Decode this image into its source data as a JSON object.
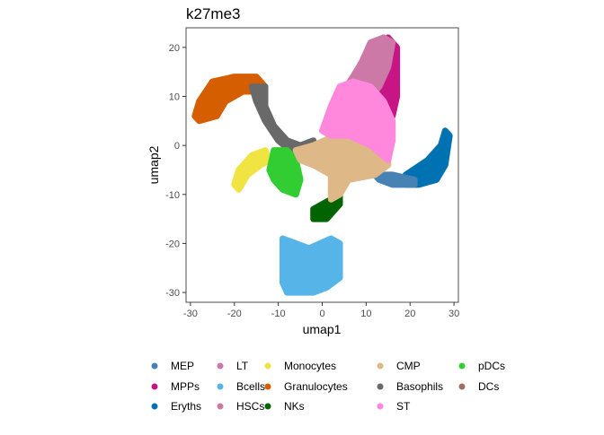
{
  "chart_data": {
    "type": "scatter",
    "title": "k27me3",
    "xlabel": "umap1",
    "ylabel": "umap2",
    "xlim": [
      -31,
      31
    ],
    "ylim": [
      -32,
      24
    ],
    "x_ticks": [
      -30,
      -20,
      -10,
      0,
      10,
      20,
      30
    ],
    "y_ticks": [
      -30,
      -20,
      -10,
      0,
      10,
      20
    ],
    "grid": false,
    "legend_position": "bottom",
    "legend": [
      {
        "name": "MEP",
        "color": "#4682B4"
      },
      {
        "name": "MPPs",
        "color": "#C71585"
      },
      {
        "name": "Eryths",
        "color": "#0072B2"
      },
      {
        "name": "LT",
        "color": "#CC79A7"
      },
      {
        "name": "Bcells",
        "color": "#56B4E9"
      },
      {
        "name": "HSCs",
        "color": "#CC79A7"
      },
      {
        "name": "Monocytes",
        "color": "#F0E442"
      },
      {
        "name": "Granulocytes",
        "color": "#D55E00"
      },
      {
        "name": "NKs",
        "color": "#006400"
      },
      {
        "name": "CMP",
        "color": "#DEB887"
      },
      {
        "name": "Basophils",
        "color": "#696969"
      },
      {
        "name": "ST",
        "color": "#FF88DD"
      },
      {
        "name": "pDCs",
        "color": "#32CD32"
      },
      {
        "name": "DCs",
        "color": "#A0705F"
      }
    ],
    "clusters": [
      {
        "name": "Granulocytes",
        "color": "#D55E00",
        "path": [
          [
            -28,
            5
          ],
          [
            -29,
            6
          ],
          [
            -28,
            9
          ],
          [
            -25,
            13
          ],
          [
            -20,
            14
          ],
          [
            -15,
            14
          ],
          [
            -13,
            12
          ],
          [
            -14,
            11
          ],
          [
            -18,
            11
          ],
          [
            -22,
            9
          ],
          [
            -24,
            6
          ]
        ]
      },
      {
        "name": "Basophils",
        "color": "#696969",
        "path": [
          [
            -16,
            12
          ],
          [
            -13,
            12
          ],
          [
            -13,
            8
          ],
          [
            -11,
            4
          ],
          [
            -8,
            1
          ],
          [
            -5,
            0
          ],
          [
            -2,
            1
          ],
          [
            -2,
            -1
          ],
          [
            -6,
            -2
          ],
          [
            -10,
            1
          ],
          [
            -13,
            5
          ],
          [
            -15,
            9
          ]
        ]
      },
      {
        "name": "Monocytes",
        "color": "#F0E442",
        "path": [
          [
            -20,
            -8
          ],
          [
            -19,
            -5
          ],
          [
            -16,
            -2
          ],
          [
            -13,
            -1
          ],
          [
            -12,
            -3
          ],
          [
            -14,
            -4
          ],
          [
            -17,
            -6
          ],
          [
            -19,
            -9
          ]
        ]
      },
      {
        "name": "pDCs",
        "color": "#32CD32",
        "path": [
          [
            -12,
            -5
          ],
          [
            -11,
            -1
          ],
          [
            -8,
            -1
          ],
          [
            -6,
            -3
          ],
          [
            -5,
            -7
          ],
          [
            -6,
            -10
          ],
          [
            -9,
            -9
          ],
          [
            -11,
            -7
          ]
        ]
      },
      {
        "name": "NKs",
        "color": "#006400",
        "path": [
          [
            -2,
            -13
          ],
          [
            -2,
            -15
          ],
          [
            1,
            -15
          ],
          [
            4,
            -12
          ],
          [
            4,
            -9
          ],
          [
            3,
            -8
          ],
          [
            2,
            -11
          ],
          [
            0,
            -12
          ]
        ]
      },
      {
        "name": "Bcells",
        "color": "#56B4E9",
        "path": [
          [
            -9,
            -19
          ],
          [
            -9,
            -23
          ],
          [
            -9,
            -28
          ],
          [
            -8,
            -30
          ],
          [
            -2,
            -30
          ],
          [
            1,
            -29
          ],
          [
            4,
            -27
          ],
          [
            4,
            -20
          ],
          [
            2,
            -19
          ],
          [
            -3,
            -21
          ],
          [
            -6,
            -20
          ]
        ]
      },
      {
        "name": "Eryths",
        "color": "#0072B2",
        "path": [
          [
            19,
            -6
          ],
          [
            24,
            -3
          ],
          [
            27,
            0
          ],
          [
            28,
            3
          ],
          [
            29,
            2
          ],
          [
            28,
            -4
          ],
          [
            26,
            -7
          ],
          [
            22,
            -8
          ],
          [
            19,
            -8
          ]
        ]
      },
      {
        "name": "MEP",
        "color": "#4682B4",
        "path": [
          [
            12,
            -6
          ],
          [
            16,
            -6
          ],
          [
            21,
            -7
          ],
          [
            21,
            -8
          ],
          [
            16,
            -8
          ],
          [
            13,
            -7
          ]
        ]
      },
      {
        "name": "CMP",
        "color": "#DEB887",
        "path": [
          [
            -2,
            0
          ],
          [
            3,
            2
          ],
          [
            6,
            3
          ],
          [
            12,
            2
          ],
          [
            15,
            1
          ],
          [
            15,
            -4
          ],
          [
            12,
            -6
          ],
          [
            6,
            -7
          ],
          [
            4,
            -10
          ],
          [
            2,
            -11
          ],
          [
            2,
            -6
          ],
          [
            -2,
            -4
          ],
          [
            -5,
            -3
          ],
          [
            -6,
            -1
          ]
        ]
      },
      {
        "name": "MPPs",
        "color": "#C71585",
        "path": [
          [
            10,
            13
          ],
          [
            10,
            17
          ],
          [
            12,
            19
          ],
          [
            15,
            22
          ],
          [
            17,
            20
          ],
          [
            17,
            10
          ],
          [
            16,
            6
          ],
          [
            13,
            7
          ],
          [
            11,
            10
          ]
        ]
      },
      {
        "name": "HSCs",
        "color": "#CC79A7",
        "path": [
          [
            4,
            10
          ],
          [
            7,
            14
          ],
          [
            9,
            17
          ],
          [
            11,
            21
          ],
          [
            14,
            22
          ],
          [
            16,
            21
          ],
          [
            15,
            16
          ],
          [
            13,
            12
          ],
          [
            11,
            10
          ],
          [
            8,
            7
          ],
          [
            5,
            7
          ]
        ]
      },
      {
        "name": "ST",
        "color": "#FF88DD",
        "path": [
          [
            0,
            3
          ],
          [
            2,
            8
          ],
          [
            4,
            12
          ],
          [
            7,
            13
          ],
          [
            11,
            12
          ],
          [
            14,
            9
          ],
          [
            16,
            5
          ],
          [
            16,
            1
          ],
          [
            15,
            -3
          ],
          [
            11,
            0
          ],
          [
            6,
            2
          ],
          [
            2,
            2
          ]
        ]
      }
    ]
  }
}
